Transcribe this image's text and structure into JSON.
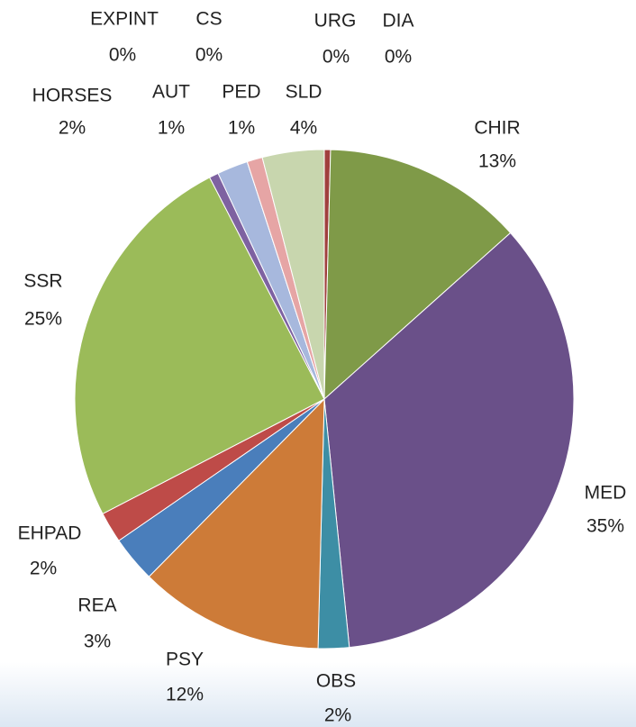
{
  "chart_data": {
    "type": "pie",
    "categories": [
      "URG",
      "DIA",
      "CHIR",
      "MED",
      "OBS",
      "PSY",
      "REA",
      "EHPAD",
      "SSR",
      "AUT",
      "HORSES",
      "EXPINT",
      "CS",
      "PED",
      "SLD"
    ],
    "values": [
      0,
      0.4,
      13,
      35,
      2,
      12,
      3,
      2,
      25,
      0.6,
      2,
      0,
      0,
      1,
      4
    ],
    "value_labels": [
      "0%",
      "0%",
      "13%",
      "35%",
      "2%",
      "12%",
      "3%",
      "2%",
      "25%",
      "1%",
      "2%",
      "0%",
      "0%",
      "1%",
      "4%"
    ],
    "colors": [
      "#8064a2",
      "#a0403d",
      "#7f9a48",
      "#6a5089",
      "#3d8ea5",
      "#cd7b38",
      "#4a7ebb",
      "#be4b48",
      "#9bbb59",
      "#7e62a1",
      "#a7b8dd",
      "#4bacc6",
      "#f79646",
      "#e6a5a5",
      "#c8d6ae"
    ]
  }
}
